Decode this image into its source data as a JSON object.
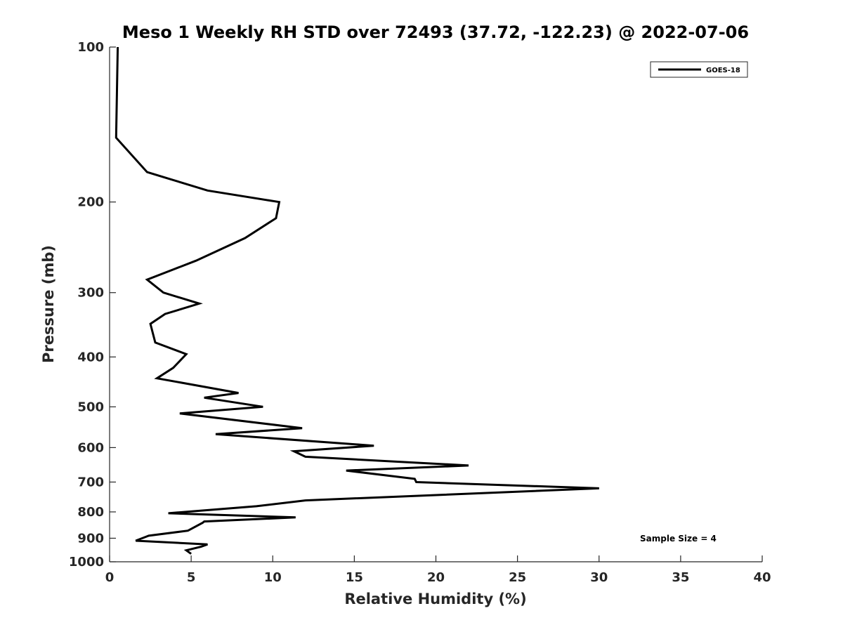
{
  "chart_data": {
    "type": "line",
    "title": "Meso 1 Weekly RH STD over 72493 (37.72, -122.23) @ 2022-07-06",
    "xlabel": "Relative Humidity (%)",
    "ylabel": "Pressure (mb)",
    "xlim": [
      0,
      40
    ],
    "ylim": [
      100,
      1000
    ],
    "y_scale": "log",
    "y_reversed": true,
    "x_ticks": [
      0,
      5,
      10,
      15,
      20,
      25,
      30,
      35,
      40
    ],
    "y_ticks": [
      100,
      200,
      300,
      400,
      500,
      600,
      700,
      800,
      900,
      1000
    ],
    "grid": false,
    "legend_position": "top-right",
    "annotation": "Sample Size = 4",
    "series": [
      {
        "name": "GOES-18",
        "color": "#000000",
        "points": [
          [
            0.5,
            100
          ],
          [
            0.4,
            150
          ],
          [
            2.3,
            175
          ],
          [
            6.0,
            190
          ],
          [
            10.4,
            200
          ],
          [
            10.2,
            215
          ],
          [
            8.3,
            235
          ],
          [
            5.3,
            260
          ],
          [
            2.3,
            283
          ],
          [
            3.3,
            300
          ],
          [
            5.5,
            315
          ],
          [
            3.4,
            330
          ],
          [
            2.5,
            345
          ],
          [
            2.8,
            375
          ],
          [
            4.7,
            395
          ],
          [
            3.9,
            420
          ],
          [
            2.9,
            440
          ],
          [
            7.9,
            470
          ],
          [
            5.8,
            480
          ],
          [
            9.4,
            500
          ],
          [
            4.3,
            515
          ],
          [
            11.8,
            550
          ],
          [
            6.5,
            565
          ],
          [
            16.2,
            595
          ],
          [
            11.3,
            610
          ],
          [
            12.0,
            625
          ],
          [
            22.0,
            650
          ],
          [
            14.5,
            665
          ],
          [
            18.7,
            690
          ],
          [
            18.8,
            700
          ],
          [
            30.0,
            720
          ],
          [
            12.0,
            760
          ],
          [
            9.0,
            780
          ],
          [
            3.6,
            805
          ],
          [
            11.4,
            820
          ],
          [
            5.8,
            835
          ],
          [
            5.7,
            840
          ],
          [
            4.8,
            870
          ],
          [
            2.4,
            890
          ],
          [
            1.6,
            910
          ],
          [
            6.0,
            925
          ],
          [
            5.6,
            935
          ],
          [
            4.7,
            950
          ],
          [
            5.0,
            965
          ]
        ]
      }
    ]
  }
}
